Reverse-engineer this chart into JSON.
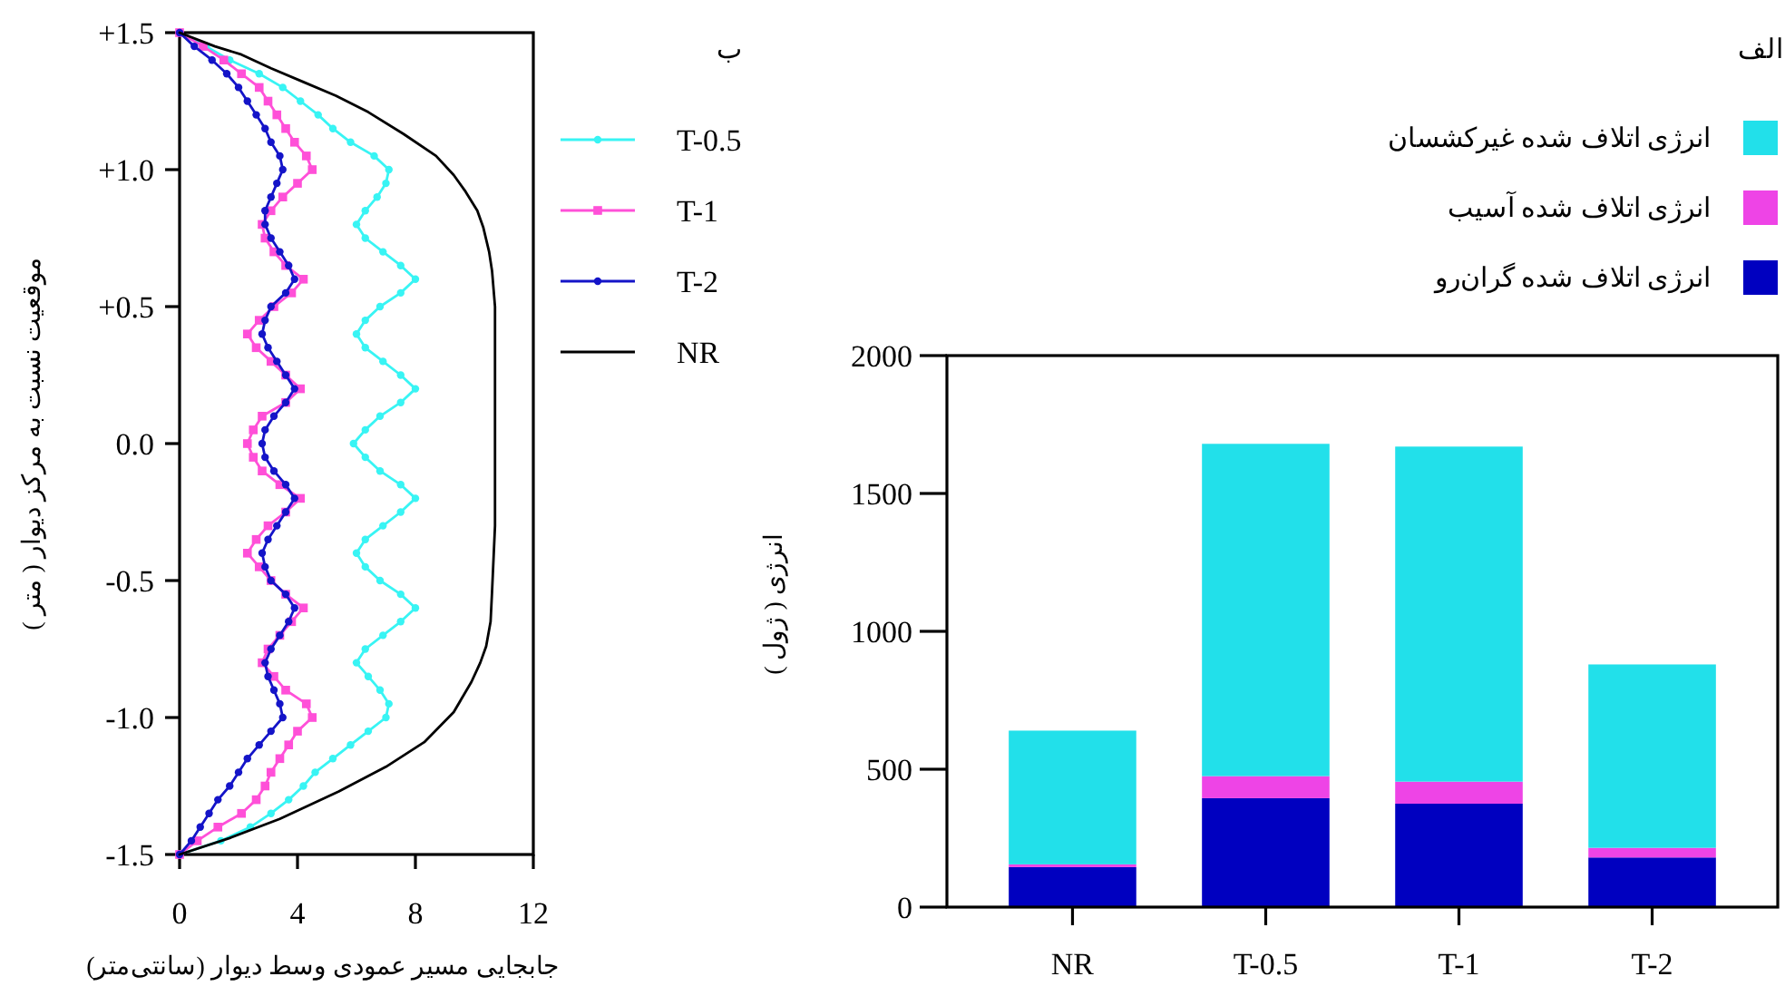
{
  "chart_data": [
    {
      "type": "line",
      "annotations": [
        "ب"
      ],
      "xlabel": "جابجایی مسیر عمودی وسط دیوار (سانتی‌متر)",
      "ylabel": "موقعیت نسبت به مرکز دیوار ( متر )",
      "xlim": [
        0,
        12
      ],
      "xticks": [
        0,
        4,
        8,
        12
      ],
      "ylim": [
        -1.5,
        1.5
      ],
      "yticks": [
        {
          "value": 1.5,
          "label": "+1.5"
        },
        {
          "value": 1.0,
          "label": "+1.0"
        },
        {
          "value": 0.5,
          "label": "+0.5"
        },
        {
          "value": 0,
          "label": "0.0"
        },
        {
          "value": -0.5,
          "label": "-0.5"
        },
        {
          "value": -1.0,
          "label": "-1.0"
        },
        {
          "value": -1.5,
          "label": "-1.5"
        }
      ],
      "legend": "right",
      "line_style": "solid",
      "series": [
        {
          "name": "T-0.5",
          "color": "#38f4f4",
          "marker": "circle",
          "x": [
            0,
            0.9,
            1.7,
            2.7,
            3.5,
            4.1,
            4.7,
            5.2,
            5.8,
            6.6,
            7.1,
            7.0,
            6.7,
            6.3,
            6.0,
            6.3,
            6.9,
            7.5,
            8.0,
            7.5,
            6.8,
            6.3,
            6.0,
            6.3,
            6.9,
            7.5,
            8.0,
            7.5,
            6.8,
            6.3,
            5.9,
            6.3,
            6.8,
            7.5,
            8.0,
            7.5,
            6.9,
            6.3,
            6.0,
            6.3,
            6.8,
            7.5,
            8.0,
            7.5,
            6.9,
            6.3,
            6.0,
            6.4,
            6.8,
            7.1,
            7.0,
            6.4,
            5.8,
            5.2,
            4.6,
            4.2,
            3.7,
            3.1,
            2.4,
            1.4,
            0
          ],
          "values": [
            1.5,
            1.45,
            1.4,
            1.35,
            1.3,
            1.25,
            1.2,
            1.15,
            1.1,
            1.05,
            1.0,
            0.95,
            0.9,
            0.85,
            0.8,
            0.75,
            0.7,
            0.65,
            0.6,
            0.55,
            0.5,
            0.45,
            0.4,
            0.35,
            0.3,
            0.25,
            0.2,
            0.15,
            0.1,
            0.05,
            0,
            -0.05,
            -0.1,
            -0.15,
            -0.2,
            -0.25,
            -0.3,
            -0.35,
            -0.4,
            -0.45,
            -0.5,
            -0.55,
            -0.6,
            -0.65,
            -0.7,
            -0.75,
            -0.8,
            -0.85,
            -0.9,
            -0.95,
            -1.0,
            -1.05,
            -1.1,
            -1.15,
            -1.2,
            -1.25,
            -1.3,
            -1.35,
            -1.4,
            -1.45,
            -1.5
          ]
        },
        {
          "name": "T-1",
          "color": "#ff50d8",
          "marker": "square",
          "x": [
            0,
            0.8,
            1.5,
            2.1,
            2.7,
            3.0,
            3.3,
            3.6,
            3.9,
            4.3,
            4.5,
            4.0,
            3.5,
            3.1,
            2.8,
            2.9,
            3.2,
            3.6,
            4.2,
            3.8,
            3.2,
            2.7,
            2.3,
            2.6,
            3.1,
            3.6,
            4.1,
            3.6,
            2.8,
            2.5,
            2.3,
            2.5,
            2.8,
            3.4,
            4.1,
            3.6,
            3.0,
            2.6,
            2.3,
            2.7,
            3.1,
            3.6,
            4.2,
            3.8,
            3.4,
            3.0,
            2.8,
            3.2,
            3.6,
            4.3,
            4.5,
            4.0,
            3.7,
            3.4,
            3.1,
            2.9,
            2.6,
            2.1,
            1.3,
            0.6,
            0
          ],
          "values": [
            1.5,
            1.45,
            1.4,
            1.35,
            1.3,
            1.25,
            1.2,
            1.15,
            1.1,
            1.05,
            1.0,
            0.95,
            0.9,
            0.85,
            0.8,
            0.75,
            0.7,
            0.65,
            0.6,
            0.55,
            0.5,
            0.45,
            0.4,
            0.35,
            0.3,
            0.25,
            0.2,
            0.15,
            0.1,
            0.05,
            0,
            -0.05,
            -0.1,
            -0.15,
            -0.2,
            -0.25,
            -0.3,
            -0.35,
            -0.4,
            -0.45,
            -0.5,
            -0.55,
            -0.6,
            -0.65,
            -0.7,
            -0.75,
            -0.8,
            -0.85,
            -0.9,
            -0.95,
            -1.0,
            -1.05,
            -1.1,
            -1.15,
            -1.2,
            -1.25,
            -1.3,
            -1.35,
            -1.4,
            -1.45,
            -1.5
          ]
        },
        {
          "name": "T-2",
          "color": "#1414c8",
          "marker": "circle",
          "x": [
            0,
            0.5,
            1.1,
            1.6,
            2.0,
            2.3,
            2.6,
            2.9,
            3.1,
            3.4,
            3.5,
            3.3,
            3.1,
            2.9,
            2.9,
            3.1,
            3.4,
            3.7,
            3.9,
            3.6,
            3.1,
            2.9,
            2.8,
            3.0,
            3.3,
            3.6,
            3.9,
            3.6,
            3.2,
            2.9,
            2.8,
            2.9,
            3.2,
            3.6,
            3.9,
            3.6,
            3.3,
            3.0,
            2.8,
            2.9,
            3.1,
            3.6,
            3.9,
            3.7,
            3.4,
            3.1,
            2.9,
            3.0,
            3.2,
            3.4,
            3.5,
            3.1,
            2.7,
            2.3,
            2.0,
            1.7,
            1.3,
            1.0,
            0.7,
            0.4,
            0
          ],
          "values": [
            1.5,
            1.45,
            1.4,
            1.35,
            1.3,
            1.25,
            1.2,
            1.15,
            1.1,
            1.05,
            1.0,
            0.95,
            0.9,
            0.85,
            0.8,
            0.75,
            0.7,
            0.65,
            0.6,
            0.55,
            0.5,
            0.45,
            0.4,
            0.35,
            0.3,
            0.25,
            0.2,
            0.15,
            0.1,
            0.05,
            0,
            -0.05,
            -0.1,
            -0.15,
            -0.2,
            -0.25,
            -0.3,
            -0.35,
            -0.4,
            -0.45,
            -0.5,
            -0.55,
            -0.6,
            -0.65,
            -0.7,
            -0.75,
            -0.8,
            -0.85,
            -0.9,
            -0.95,
            -1.0,
            -1.05,
            -1.1,
            -1.15,
            -1.2,
            -1.25,
            -1.3,
            -1.35,
            -1.4,
            -1.45,
            -1.5
          ]
        },
        {
          "name": "NR",
          "color": "#000000",
          "marker": "none",
          "x": [
            0,
            1.2,
            2.1,
            3.1,
            4.2,
            5.3,
            6.4,
            7.6,
            8.7,
            9.3,
            9.7,
            10.1,
            10.3,
            10.5,
            10.6,
            10.7,
            10.7,
            10.7,
            10.7,
            10.6,
            10.55,
            10.4,
            10.2,
            9.9,
            9.3,
            8.3,
            7.0,
            5.4,
            3.4,
            1.7,
            0
          ],
          "values": [
            1.5,
            1.45,
            1.42,
            1.37,
            1.32,
            1.27,
            1.21,
            1.13,
            1.05,
            0.98,
            0.92,
            0.85,
            0.79,
            0.7,
            0.63,
            0.5,
            0.3,
            0,
            -0.3,
            -0.54,
            -0.65,
            -0.74,
            -0.8,
            -0.87,
            -0.98,
            -1.09,
            -1.18,
            -1.27,
            -1.37,
            -1.44,
            -1.5
          ]
        }
      ]
    },
    {
      "type": "bar",
      "title": "الف",
      "ylabel": "انرژی ( ژول )",
      "categories": [
        "NR",
        "T-0.5",
        "T-1",
        "T-2"
      ],
      "stacked": true,
      "ylim": [
        0,
        2000
      ],
      "yticks": [
        0,
        500,
        1000,
        1500,
        2000
      ],
      "legend": "top",
      "series": [
        {
          "name": "انرژی اتلاف شده گران‌رو",
          "color": "#0000c0",
          "values": [
            145,
            395,
            375,
            180
          ]
        },
        {
          "name": "انرژی اتلاف شده آسیب",
          "color": "#ee44e6",
          "values": [
            10,
            80,
            80,
            35
          ]
        },
        {
          "name": "انرژی اتلاف شده غیرکشسان",
          "color": "#22e0ea",
          "values": [
            485,
            1205,
            1215,
            665
          ]
        }
      ]
    }
  ]
}
